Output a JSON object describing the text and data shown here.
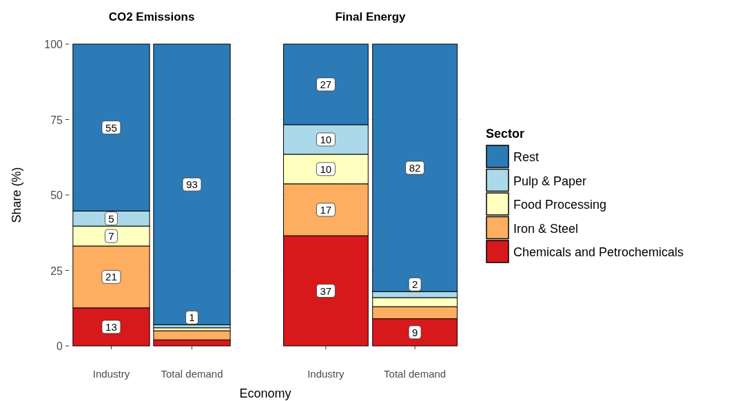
{
  "chart_data": [
    {
      "type": "bar",
      "title": "CO2 Emissions",
      "ylabel": "Share (%)",
      "categories": [
        "Industry",
        "Total demand"
      ],
      "stacked": true,
      "ylim": [
        0,
        100
      ],
      "yticks": [
        0,
        25,
        50,
        75,
        100
      ],
      "grid": true,
      "series": [
        {
          "color": "#d7191c",
          "values": [
            12.6,
            2
          ],
          "value_labels": [
            "13",
            null
          ]
        },
        {
          "color": "#fdae61",
          "values": [
            20.5,
            3
          ],
          "value_labels": [
            "21",
            null
          ]
        },
        {
          "color": "#ffffbf",
          "values": [
            6.6,
            1
          ],
          "value_labels": [
            "7",
            null
          ]
        },
        {
          "color": "#abd9e9",
          "values": [
            5,
            1
          ],
          "value_labels": [
            "5",
            "1"
          ]
        },
        {
          "color": "#2c7bb6",
          "values": [
            55.3,
            93
          ],
          "value_labels": [
            "55",
            "93"
          ]
        }
      ]
    },
    {
      "type": "bar",
      "title": "Final Energy",
      "xlabel": "Economy",
      "legend_title": "Sector",
      "legend": "right",
      "tick_labels": "x",
      "categories": [
        "Industry",
        "Total demand"
      ],
      "stacked": true,
      "ylim": [
        0,
        100
      ],
      "yticks": [
        0,
        25,
        50,
        75,
        100
      ],
      "grid": true,
      "series": [
        {
          "name": "Chemicals and Petrochemicals",
          "color": "#d7191c",
          "values": [
            36.5,
            9
          ],
          "value_labels": [
            "37",
            "9"
          ]
        },
        {
          "name": "Iron & Steel",
          "color": "#fdae61",
          "values": [
            17.2,
            4
          ],
          "value_labels": [
            "17",
            null
          ]
        },
        {
          "name": "Food Processing",
          "color": "#ffffbf",
          "values": [
            9.8,
            3
          ],
          "value_labels": [
            "10",
            null
          ]
        },
        {
          "name": "Pulp & Paper",
          "color": "#abd9e9",
          "values": [
            9.8,
            2
          ],
          "value_labels": [
            "10",
            "2"
          ]
        },
        {
          "name": "Rest",
          "color": "#2c7bb6",
          "values": [
            26.7,
            82
          ],
          "value_labels": [
            "27",
            "82"
          ]
        }
      ]
    }
  ]
}
